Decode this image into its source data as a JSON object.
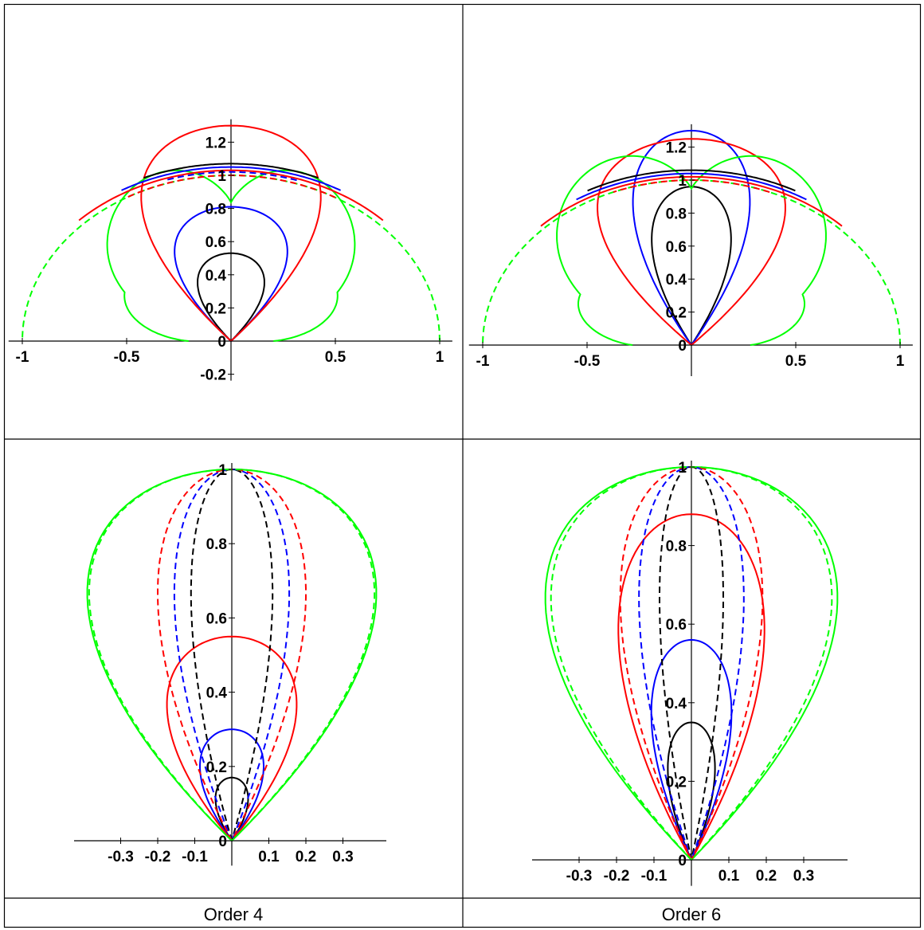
{
  "layout_table": {
    "captions": [
      "Order 4",
      "Order 6"
    ]
  },
  "chart_data": [
    {
      "type": "line",
      "panel": "top-left",
      "coordinate_system": "polar",
      "xlim": [
        -1.02,
        1.03
      ],
      "ylim": [
        -0.2,
        1.3
      ],
      "x_ticks": [
        -1,
        -0.5,
        0.5,
        1
      ],
      "x_tick_labels": [
        "-1",
        "-0.5",
        "0.5",
        "1"
      ],
      "y_ticks": [
        -0.2,
        0,
        0.2,
        0.4,
        0.6,
        0.8,
        1,
        1.2
      ],
      "y_tick_labels": [
        "-0.2",
        "0",
        "0.2",
        "0.4",
        "0.6",
        "0.8",
        "1",
        "1.2"
      ],
      "legend": "none",
      "grid": false,
      "series": [
        {
          "color": "#000000",
          "kind": "lobe",
          "peak": 0.53,
          "width": 0.16
        },
        {
          "color": "#0000ff",
          "kind": "lobe",
          "peak": 0.81,
          "width": 0.27
        },
        {
          "color": "#ff0000",
          "kind": "lobe",
          "peak": 1.3,
          "width": 0.43
        },
        {
          "color": "#00ff00",
          "kind": "petal",
          "peak": 0.82,
          "dip": 0.82,
          "side_peak": 0.88,
          "side_x": 0.58
        },
        {
          "color": "#000000",
          "kind": "arc",
          "r": 1.07,
          "theta_range": [
            67,
            113
          ]
        },
        {
          "color": "#0000ff",
          "kind": "arc",
          "r": 1.05,
          "theta_range": [
            60,
            120
          ]
        },
        {
          "color": "#ff0000",
          "kind": "arc",
          "r": 1.03,
          "theta_range": [
            45,
            135
          ]
        },
        {
          "color": "#00ff00",
          "kind": "arc",
          "r": 1.0,
          "dashed": true,
          "theta_range": [
            0,
            180
          ]
        },
        {
          "color": "#ff0000",
          "kind": "arc",
          "r": 1.0,
          "dashed": true,
          "theta_range": [
            60,
            120
          ]
        },
        {
          "color": "#0000ff",
          "kind": "arc",
          "r": 1.02,
          "dashed": true,
          "theta_range": [
            72,
            108
          ]
        }
      ]
    },
    {
      "type": "line",
      "panel": "top-right",
      "coordinate_system": "polar",
      "xlim": [
        -1.02,
        1.03
      ],
      "ylim": [
        -0.15,
        1.3
      ],
      "x_ticks": [
        -1,
        -0.5,
        0.5,
        1
      ],
      "x_tick_labels": [
        "-1",
        "-0.5",
        "0.5",
        "1"
      ],
      "y_ticks": [
        0,
        0.2,
        0.4,
        0.6,
        0.8,
        1,
        1.2
      ],
      "y_tick_labels": [
        "0",
        "0.2",
        "0.4",
        "0.6",
        "0.8",
        "1",
        "1.2"
      ],
      "legend": "none",
      "grid": false,
      "series": [
        {
          "color": "#000000",
          "kind": "lobe",
          "peak": 0.96,
          "width": 0.19
        },
        {
          "color": "#0000ff",
          "kind": "lobe",
          "peak": 1.3,
          "width": 0.28
        },
        {
          "color": "#ff0000",
          "kind": "lobe",
          "peak": 1.25,
          "width": 0.45
        },
        {
          "color": "#00ff00",
          "kind": "petal",
          "peak": 1.14,
          "dip": 1.14,
          "side_peak": 0.92,
          "side_x": 0.6
        },
        {
          "color": "#000000",
          "kind": "arc",
          "r": 1.06,
          "theta_range": [
            62,
            118
          ]
        },
        {
          "color": "#0000ff",
          "kind": "arc",
          "r": 1.04,
          "theta_range": [
            58,
            122
          ]
        },
        {
          "color": "#ff0000",
          "kind": "arc",
          "r": 1.02,
          "theta_range": [
            45,
            135
          ]
        },
        {
          "color": "#00ff00",
          "kind": "arc",
          "r": 1.0,
          "dashed": true,
          "theta_range": [
            0,
            180
          ]
        },
        {
          "color": "#ff0000",
          "kind": "arc",
          "r": 1.0,
          "dashed": true,
          "theta_range": [
            68,
            112
          ]
        }
      ]
    },
    {
      "type": "line",
      "panel": "bottom-left",
      "coordinate_system": "polar",
      "xlim": [
        -0.4,
        0.4
      ],
      "ylim": [
        -0.05,
        1.0
      ],
      "x_ticks": [
        -0.3,
        -0.2,
        -0.1,
        0.1,
        0.2,
        0.3
      ],
      "x_tick_labels": [
        "-0.3",
        "-0.2",
        "-0.1",
        "0.1",
        "0.2",
        "0.3"
      ],
      "y_ticks": [
        0,
        0.2,
        0.4,
        0.6,
        0.8,
        1
      ],
      "y_tick_labels": [
        "0",
        "0.2",
        "0.4",
        "0.6",
        "0.8",
        "1"
      ],
      "legend": "none",
      "grid": false,
      "series": [
        {
          "color": "#000000",
          "kind": "lobe",
          "peak": 0.17,
          "width": 0.044
        },
        {
          "color": "#0000ff",
          "kind": "lobe",
          "peak": 0.3,
          "width": 0.086
        },
        {
          "color": "#ff0000",
          "kind": "lobe",
          "peak": 0.55,
          "width": 0.175
        },
        {
          "color": "#00ff00",
          "kind": "lobe",
          "peak": 1.0,
          "width": 0.39
        },
        {
          "color": "#000000",
          "kind": "lobe",
          "peak": 1.0,
          "width": 0.11,
          "dashed": true
        },
        {
          "color": "#0000ff",
          "kind": "lobe",
          "peak": 1.0,
          "width": 0.155,
          "dashed": true
        },
        {
          "color": "#ff0000",
          "kind": "lobe",
          "peak": 1.0,
          "width": 0.2,
          "dashed": true
        },
        {
          "color": "#00ff00",
          "kind": "lobe",
          "peak": 1.0,
          "width": 0.385,
          "dashed": true
        }
      ]
    },
    {
      "type": "line",
      "panel": "bottom-right",
      "coordinate_system": "polar",
      "xlim": [
        -0.4,
        0.4
      ],
      "ylim": [
        -0.05,
        1.0
      ],
      "x_ticks": [
        -0.3,
        -0.2,
        -0.1,
        0.1,
        0.2,
        0.3
      ],
      "x_tick_labels": [
        "-0.3",
        "-0.2",
        "-0.1",
        "0.1",
        "0.2",
        "0.3"
      ],
      "y_ticks": [
        0,
        0.2,
        0.4,
        0.6,
        0.8,
        1
      ],
      "y_tick_labels": [
        "0",
        "0.2",
        "0.4",
        "0.6",
        "0.8",
        "1"
      ],
      "legend": "none",
      "grid": false,
      "series": [
        {
          "color": "#000000",
          "kind": "lobe",
          "peak": 0.35,
          "width": 0.063
        },
        {
          "color": "#0000ff",
          "kind": "lobe",
          "peak": 0.56,
          "width": 0.107
        },
        {
          "color": "#ff0000",
          "kind": "lobe",
          "peak": 0.88,
          "width": 0.195
        },
        {
          "color": "#00ff00",
          "kind": "lobe",
          "peak": 1.0,
          "width": 0.39
        },
        {
          "color": "#000000",
          "kind": "lobe",
          "peak": 1.0,
          "width": 0.085,
          "dashed": true
        },
        {
          "color": "#0000ff",
          "kind": "lobe",
          "peak": 1.0,
          "width": 0.14,
          "dashed": true
        },
        {
          "color": "#ff0000",
          "kind": "lobe",
          "peak": 1.0,
          "width": 0.19,
          "dashed": true
        },
        {
          "color": "#00ff00",
          "kind": "lobe",
          "peak": 1.0,
          "width": 0.375,
          "dashed": true
        }
      ]
    }
  ]
}
